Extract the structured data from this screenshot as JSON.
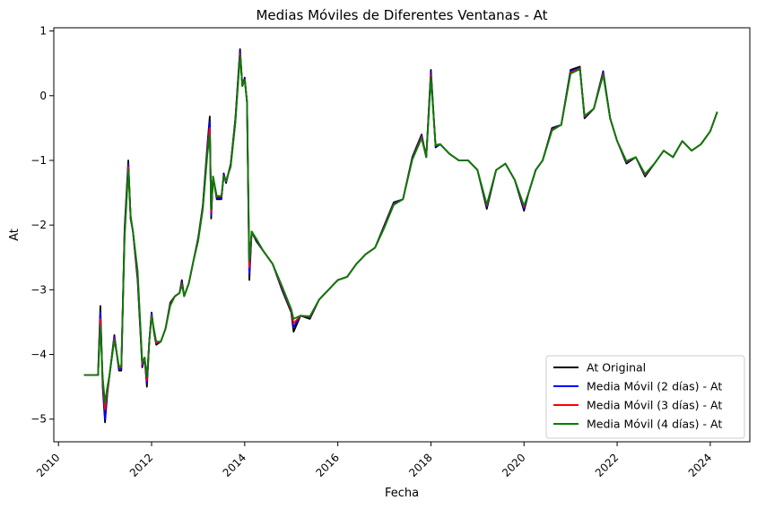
{
  "chart_data": {
    "type": "line",
    "title": "Medias Móviles de Diferentes Ventanas - At",
    "xlabel": "Fecha",
    "ylabel": "At",
    "xlim": [
      2009.9,
      2024.85
    ],
    "ylim": [
      -5.35,
      1.05
    ],
    "xticks": [
      {
        "value": 2010,
        "label": "2010"
      },
      {
        "value": 2012,
        "label": "2012"
      },
      {
        "value": 2014,
        "label": "2014"
      },
      {
        "value": 2016,
        "label": "2016"
      },
      {
        "value": 2018,
        "label": "2018"
      },
      {
        "value": 2020,
        "label": "2020"
      },
      {
        "value": 2022,
        "label": "2022"
      },
      {
        "value": 2024,
        "label": "2024"
      }
    ],
    "yticks": [
      {
        "value": 1,
        "label": "1"
      },
      {
        "value": 0,
        "label": "0"
      },
      {
        "value": -1,
        "label": "−1"
      },
      {
        "value": -2,
        "label": "−2"
      },
      {
        "value": -3,
        "label": "−3"
      },
      {
        "value": -4,
        "label": "−4"
      },
      {
        "value": -5,
        "label": "−5"
      }
    ],
    "grid": false,
    "legend_position": "bottom-right",
    "x": [
      2010.55,
      2010.85,
      2010.9,
      2010.95,
      2011.0,
      2011.05,
      2011.1,
      2011.2,
      2011.3,
      2011.35,
      2011.42,
      2011.5,
      2011.55,
      2011.6,
      2011.7,
      2011.8,
      2011.85,
      2011.9,
      2011.95,
      2012.0,
      2012.05,
      2012.1,
      2012.2,
      2012.3,
      2012.4,
      2012.5,
      2012.6,
      2012.65,
      2012.7,
      2012.8,
      2012.9,
      2013.0,
      2013.1,
      2013.2,
      2013.25,
      2013.28,
      2013.32,
      2013.4,
      2013.5,
      2013.55,
      2013.6,
      2013.7,
      2013.8,
      2013.9,
      2013.95,
      2014.0,
      2014.05,
      2014.1,
      2014.15,
      2014.25,
      2014.4,
      2014.6,
      2014.8,
      2015.0,
      2015.05,
      2015.2,
      2015.4,
      2015.6,
      2015.8,
      2016.0,
      2016.2,
      2016.4,
      2016.6,
      2016.8,
      2017.0,
      2017.2,
      2017.4,
      2017.6,
      2017.8,
      2017.9,
      2018.0,
      2018.1,
      2018.2,
      2018.4,
      2018.6,
      2018.8,
      2019.0,
      2019.2,
      2019.4,
      2019.6,
      2019.8,
      2020.0,
      2020.1,
      2020.25,
      2020.4,
      2020.6,
      2020.8,
      2021.0,
      2021.2,
      2021.3,
      2021.5,
      2021.7,
      2021.85,
      2022.0,
      2022.2,
      2022.4,
      2022.6,
      2022.8,
      2023.0,
      2023.2,
      2023.4,
      2023.6,
      2023.8,
      2024.0,
      2024.15
    ],
    "series": [
      {
        "name": "At Original",
        "color": "#000000",
        "values": [
          -4.32,
          -4.32,
          -3.25,
          -4.5,
          -5.05,
          -4.6,
          -4.3,
          -3.7,
          -4.25,
          -4.25,
          -2.05,
          -1.0,
          -1.9,
          -2.1,
          -2.85,
          -4.2,
          -4.05,
          -4.5,
          -3.8,
          -3.35,
          -3.65,
          -3.85,
          -3.8,
          -3.6,
          -3.2,
          -3.1,
          -3.05,
          -2.85,
          -3.1,
          -2.9,
          -2.55,
          -2.2,
          -1.7,
          -0.75,
          -0.32,
          -1.9,
          -1.25,
          -1.6,
          -1.6,
          -1.2,
          -1.35,
          -1.05,
          -0.35,
          0.72,
          0.15,
          0.28,
          -0.1,
          -2.85,
          -2.1,
          -2.25,
          -2.4,
          -2.6,
          -3.0,
          -3.35,
          -3.65,
          -3.4,
          -3.45,
          -3.15,
          -3.0,
          -2.85,
          -2.8,
          -2.6,
          -2.45,
          -2.35,
          -2.0,
          -1.65,
          -1.6,
          -0.95,
          -0.6,
          -0.95,
          0.4,
          -0.8,
          -0.75,
          -0.9,
          -1.0,
          -1.0,
          -1.15,
          -1.75,
          -1.15,
          -1.05,
          -1.3,
          -1.78,
          -1.5,
          -1.15,
          -1.0,
          -0.5,
          -0.45,
          0.4,
          0.45,
          -0.35,
          -0.2,
          0.38,
          -0.35,
          -0.7,
          -1.05,
          -0.95,
          -1.25,
          -1.05,
          -0.85,
          -0.95,
          -0.7,
          -0.85,
          -0.75,
          -0.55,
          -0.25
        ]
      },
      {
        "name": "Media Móvil (2 días) - At",
        "color": "#0000ff",
        "values": [
          -4.32,
          -4.32,
          -3.35,
          -4.45,
          -5.0,
          -4.58,
          -4.3,
          -3.72,
          -4.22,
          -4.22,
          -2.1,
          -1.05,
          -1.9,
          -2.1,
          -2.8,
          -4.18,
          -4.05,
          -4.45,
          -3.8,
          -3.37,
          -3.63,
          -3.83,
          -3.8,
          -3.6,
          -3.22,
          -3.1,
          -3.05,
          -2.88,
          -3.1,
          -2.9,
          -2.55,
          -2.22,
          -1.72,
          -0.8,
          -0.4,
          -1.85,
          -1.25,
          -1.58,
          -1.58,
          -1.22,
          -1.33,
          -1.07,
          -0.38,
          0.68,
          0.15,
          0.26,
          -0.1,
          -2.75,
          -2.1,
          -2.23,
          -2.4,
          -2.6,
          -2.98,
          -3.33,
          -3.58,
          -3.4,
          -3.43,
          -3.15,
          -3.0,
          -2.85,
          -2.8,
          -2.6,
          -2.45,
          -2.35,
          -2.02,
          -1.67,
          -1.6,
          -0.97,
          -0.62,
          -0.95,
          0.36,
          -0.78,
          -0.75,
          -0.9,
          -1.0,
          -1.0,
          -1.15,
          -1.72,
          -1.15,
          -1.05,
          -1.3,
          -1.75,
          -1.5,
          -1.15,
          -1.0,
          -0.52,
          -0.45,
          0.38,
          0.43,
          -0.33,
          -0.2,
          0.36,
          -0.35,
          -0.7,
          -1.03,
          -0.95,
          -1.23,
          -1.05,
          -0.85,
          -0.95,
          -0.7,
          -0.85,
          -0.75,
          -0.55,
          -0.25
        ]
      },
      {
        "name": "Media Móvil (3 días) - At",
        "color": "#ff0000",
        "values": [
          -4.32,
          -4.32,
          -3.45,
          -4.4,
          -4.85,
          -4.55,
          -4.3,
          -3.75,
          -4.2,
          -4.2,
          -2.15,
          -1.1,
          -1.88,
          -2.1,
          -2.75,
          -4.15,
          -4.05,
          -4.4,
          -3.8,
          -3.4,
          -3.62,
          -3.82,
          -3.8,
          -3.6,
          -3.23,
          -3.1,
          -3.05,
          -2.9,
          -3.1,
          -2.9,
          -2.55,
          -2.23,
          -1.74,
          -0.85,
          -0.5,
          -1.8,
          -1.25,
          -1.56,
          -1.56,
          -1.24,
          -1.32,
          -1.08,
          -0.4,
          0.65,
          0.15,
          0.25,
          -0.1,
          -2.65,
          -2.1,
          -2.22,
          -2.4,
          -2.6,
          -2.96,
          -3.32,
          -3.52,
          -3.4,
          -3.42,
          -3.15,
          -3.0,
          -2.85,
          -2.8,
          -2.6,
          -2.45,
          -2.35,
          -2.03,
          -1.68,
          -1.6,
          -0.98,
          -0.64,
          -0.95,
          0.32,
          -0.77,
          -0.75,
          -0.9,
          -1.0,
          -1.0,
          -1.15,
          -1.7,
          -1.15,
          -1.05,
          -1.3,
          -1.72,
          -1.5,
          -1.15,
          -1.0,
          -0.53,
          -0.45,
          0.36,
          0.42,
          -0.32,
          -0.2,
          0.34,
          -0.35,
          -0.7,
          -1.02,
          -0.95,
          -1.22,
          -1.05,
          -0.85,
          -0.95,
          -0.7,
          -0.85,
          -0.75,
          -0.55,
          -0.25
        ]
      },
      {
        "name": "Media Móvil (4 días) - At",
        "color": "#008000",
        "values": [
          -4.32,
          -4.32,
          -3.55,
          -4.35,
          -4.75,
          -4.5,
          -4.3,
          -3.78,
          -4.18,
          -4.18,
          -2.2,
          -1.15,
          -1.85,
          -2.1,
          -2.7,
          -4.12,
          -4.05,
          -4.35,
          -3.8,
          -3.42,
          -3.6,
          -3.8,
          -3.8,
          -3.6,
          -3.25,
          -3.1,
          -3.05,
          -2.92,
          -3.1,
          -2.9,
          -2.55,
          -2.25,
          -1.76,
          -0.9,
          -0.6,
          -1.75,
          -1.25,
          -1.55,
          -1.55,
          -1.25,
          -1.31,
          -1.1,
          -0.42,
          0.62,
          0.15,
          0.24,
          -0.1,
          -2.55,
          -2.1,
          -2.21,
          -2.4,
          -2.6,
          -2.94,
          -3.3,
          -3.45,
          -3.4,
          -3.41,
          -3.15,
          -3.0,
          -2.85,
          -2.8,
          -2.6,
          -2.45,
          -2.35,
          -2.04,
          -1.69,
          -1.6,
          -0.99,
          -0.66,
          -0.95,
          0.28,
          -0.76,
          -0.75,
          -0.9,
          -1.0,
          -1.0,
          -1.15,
          -1.68,
          -1.15,
          -1.05,
          -1.3,
          -1.7,
          -1.5,
          -1.15,
          -1.0,
          -0.54,
          -0.45,
          0.34,
          0.41,
          -0.31,
          -0.2,
          0.32,
          -0.35,
          -0.7,
          -1.01,
          -0.95,
          -1.21,
          -1.05,
          -0.85,
          -0.95,
          -0.7,
          -0.85,
          -0.75,
          -0.55,
          -0.25
        ]
      }
    ]
  }
}
